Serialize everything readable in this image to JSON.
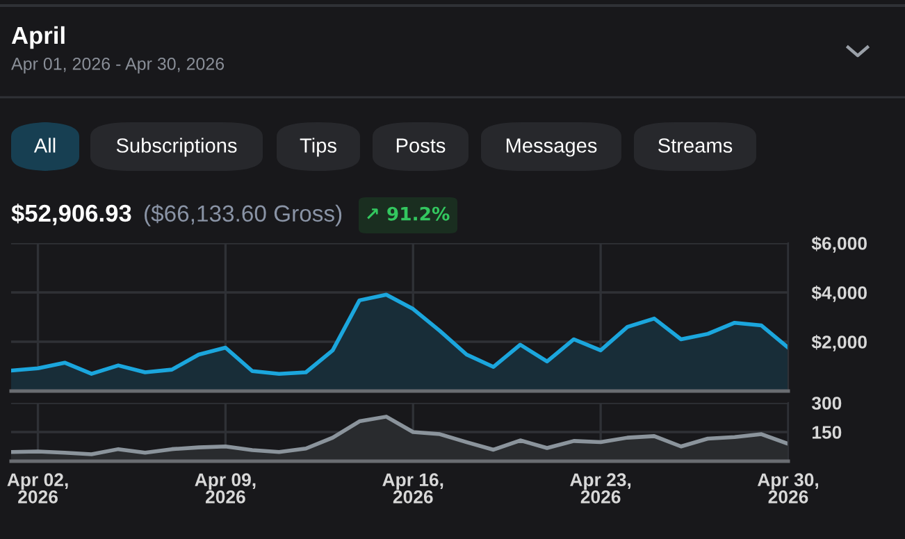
{
  "chart_data": [
    {
      "type": "area",
      "title": "April",
      "subtitle": "Apr 01, 2026 - Apr 30, 2026",
      "annotations": [
        "All",
        "Subscriptions",
        "Tips",
        "Posts",
        "Messages",
        "Streams",
        "$52,906.93",
        "($66,133.60 Gross)",
        "↗ 91.2%"
      ],
      "x": [
        "2026-04-01",
        "2026-04-02",
        "2026-04-03",
        "2026-04-04",
        "2026-04-05",
        "2026-04-06",
        "2026-04-07",
        "2026-04-08",
        "2026-04-09",
        "2026-04-10",
        "2026-04-11",
        "2026-04-12",
        "2026-04-13",
        "2026-04-14",
        "2026-04-15",
        "2026-04-16",
        "2026-04-17",
        "2026-04-18",
        "2026-04-19",
        "2026-04-20",
        "2026-04-21",
        "2026-04-22",
        "2026-04-23",
        "2026-04-24",
        "2026-04-25",
        "2026-04-26",
        "2026-04-27",
        "2026-04-28",
        "2026-04-29",
        "2026-04-30"
      ],
      "series": [
        {
          "color": "#1ba6dd",
          "values": [
            830,
            920,
            1150,
            700,
            1040,
            760,
            870,
            1480,
            1760,
            810,
            700,
            760,
            1650,
            3680,
            3910,
            3330,
            2440,
            1480,
            980,
            1880,
            1200,
            2100,
            1650,
            2600,
            2940,
            2100,
            2320,
            2770,
            2660,
            1760
          ]
        }
      ],
      "xlim": [
        "2026-04-01",
        "2026-04-30"
      ],
      "xticks": [
        {
          "value": "2026-04-02",
          "label": null
        },
        {
          "value": "2026-04-09",
          "label": null
        },
        {
          "value": "2026-04-16",
          "label": null
        },
        {
          "value": "2026-04-23",
          "label": null
        },
        {
          "value": "2026-04-30",
          "label": null
        }
      ],
      "ylim": [
        0,
        6000
      ],
      "yticks": [
        {
          "value": 2000,
          "label": "$2,000"
        },
        {
          "value": 4000,
          "label": "$4,000"
        },
        {
          "value": 6000,
          "label": "$6,000"
        }
      ],
      "grid": true,
      "tick_labels": "y"
    },
    {
      "type": "area",
      "x": [
        "2026-04-01",
        "2026-04-02",
        "2026-04-03",
        "2026-04-04",
        "2026-04-05",
        "2026-04-06",
        "2026-04-07",
        "2026-04-08",
        "2026-04-09",
        "2026-04-10",
        "2026-04-11",
        "2026-04-12",
        "2026-04-13",
        "2026-04-14",
        "2026-04-15",
        "2026-04-16",
        "2026-04-17",
        "2026-04-18",
        "2026-04-19",
        "2026-04-20",
        "2026-04-21",
        "2026-04-22",
        "2026-04-23",
        "2026-04-24",
        "2026-04-25",
        "2026-04-26",
        "2026-04-27",
        "2026-04-28",
        "2026-04-29",
        "2026-04-30"
      ],
      "series": [
        {
          "color": "#8b949c",
          "values": [
            47,
            50,
            44,
            36,
            62,
            44,
            62,
            71,
            76,
            57,
            47,
            65,
            121,
            205,
            229,
            150,
            139,
            98,
            59,
            107,
            68,
            104,
            98,
            121,
            129,
            76,
            116,
            124,
            139,
            89
          ]
        }
      ],
      "xlim": [
        "2026-04-01",
        "2026-04-30"
      ],
      "xticks": [
        {
          "value": "2026-04-02",
          "label": "Apr 02,\n2026"
        },
        {
          "value": "2026-04-09",
          "label": "Apr 09,\n2026"
        },
        {
          "value": "2026-04-16",
          "label": "Apr 16,\n2026"
        },
        {
          "value": "2026-04-23",
          "label": "Apr 23,\n2026"
        },
        {
          "value": "2026-04-30",
          "label": "Apr 30,\n2026"
        }
      ],
      "ylim": [
        0,
        300
      ],
      "yticks": [
        150,
        300
      ],
      "grid": true
    }
  ]
}
